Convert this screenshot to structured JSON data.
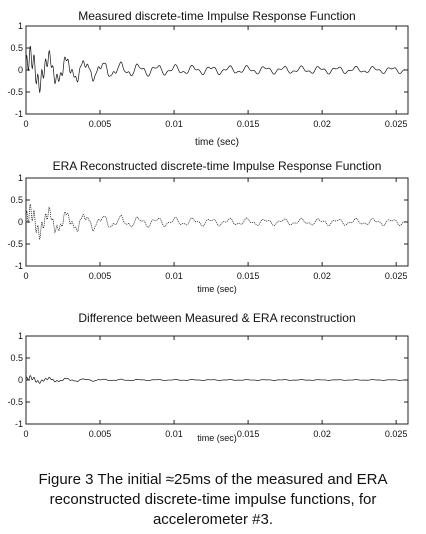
{
  "chart_data": [
    {
      "type": "line",
      "title": "Measured discrete-time Impulse Response Function",
      "xlabel": "time (sec)",
      "ylabel": "",
      "xlim": [
        0,
        0.0258
      ],
      "ylim": [
        -1,
        1
      ],
      "xticks": [
        "0",
        "0.005",
        "0.01",
        "0.015",
        "0.02",
        "0.025"
      ],
      "yticks": [
        "1",
        "0.5",
        "0",
        "-0.5",
        "-1"
      ],
      "grid": false,
      "series": [
        {
          "style": "solid",
          "x": [
            0,
            0.001,
            0.002,
            0.003,
            0.004,
            0.005,
            0.006,
            0.007,
            0.008,
            0.009,
            0.01,
            0.011,
            0.012,
            0.013,
            0.014,
            0.015,
            0.016,
            0.017,
            0.018,
            0.019,
            0.02,
            0.021,
            0.022,
            0.023,
            0.024,
            0.025,
            0.0256
          ],
          "envelope": [
            0.6,
            0.55,
            0.45,
            0.38,
            0.32,
            0.27,
            0.23,
            0.2,
            0.18,
            0.16,
            0.15,
            0.14,
            0.13,
            0.13,
            0.12,
            0.12,
            0.12,
            0.11,
            0.11,
            0.11,
            0.11,
            0.11,
            0.1,
            0.1,
            0.1,
            0.1,
            0.1
          ]
        }
      ]
    },
    {
      "type": "line",
      "title": "ERA Reconstructed discrete-time Impulse Response Function",
      "xlabel": "time (sec)",
      "ylabel": "",
      "xlim": [
        0,
        0.0258
      ],
      "ylim": [
        -1,
        1
      ],
      "xticks": [
        "0",
        "0.005",
        "0.01",
        "0.015",
        "0.02",
        "0.025"
      ],
      "yticks": [
        "1",
        "0.5",
        "0",
        "-0.5",
        "-1"
      ],
      "grid": false,
      "series": [
        {
          "style": "dotted",
          "x": [
            0,
            0.001,
            0.002,
            0.003,
            0.004,
            0.005,
            0.006,
            0.007,
            0.008,
            0.009,
            0.01,
            0.011,
            0.012,
            0.013,
            0.014,
            0.015,
            0.016,
            0.017,
            0.018,
            0.019,
            0.02,
            0.021,
            0.022,
            0.023,
            0.024,
            0.025,
            0.0256
          ],
          "envelope": [
            0.45,
            0.42,
            0.35,
            0.3,
            0.26,
            0.22,
            0.19,
            0.17,
            0.15,
            0.14,
            0.13,
            0.12,
            0.12,
            0.11,
            0.11,
            0.11,
            0.1,
            0.1,
            0.1,
            0.1,
            0.1,
            0.1,
            0.1,
            0.1,
            0.1,
            0.1,
            0.1
          ]
        }
      ]
    },
    {
      "type": "line",
      "title": "Difference between Measured & ERA reconstruction",
      "xlabel": "time (sec)",
      "ylabel": "",
      "xlim": [
        0,
        0.0258
      ],
      "ylim": [
        -1,
        1
      ],
      "xticks": [
        "0",
        "0.005",
        "0.01",
        "0.015",
        "0.02",
        "0.025"
      ],
      "yticks": [
        "1",
        "0.5",
        "0",
        "-0.5",
        "-1"
      ],
      "grid": false,
      "series": [
        {
          "style": "solid",
          "x": [
            0,
            0.001,
            0.002,
            0.003,
            0.004,
            0.005,
            0.006,
            0.008,
            0.01,
            0.015,
            0.02,
            0.025,
            0.0256
          ],
          "envelope": [
            0.12,
            0.08,
            0.06,
            0.05,
            0.04,
            0.03,
            0.025,
            0.02,
            0.015,
            0.012,
            0.01,
            0.01,
            0.01
          ]
        }
      ]
    }
  ],
  "caption": {
    "line1": "Figure 3  The initial ≈25ms of the measured and ERA",
    "line2": "reconstructed discrete-time impulse functions, for",
    "line3": "accelerometer #3."
  }
}
